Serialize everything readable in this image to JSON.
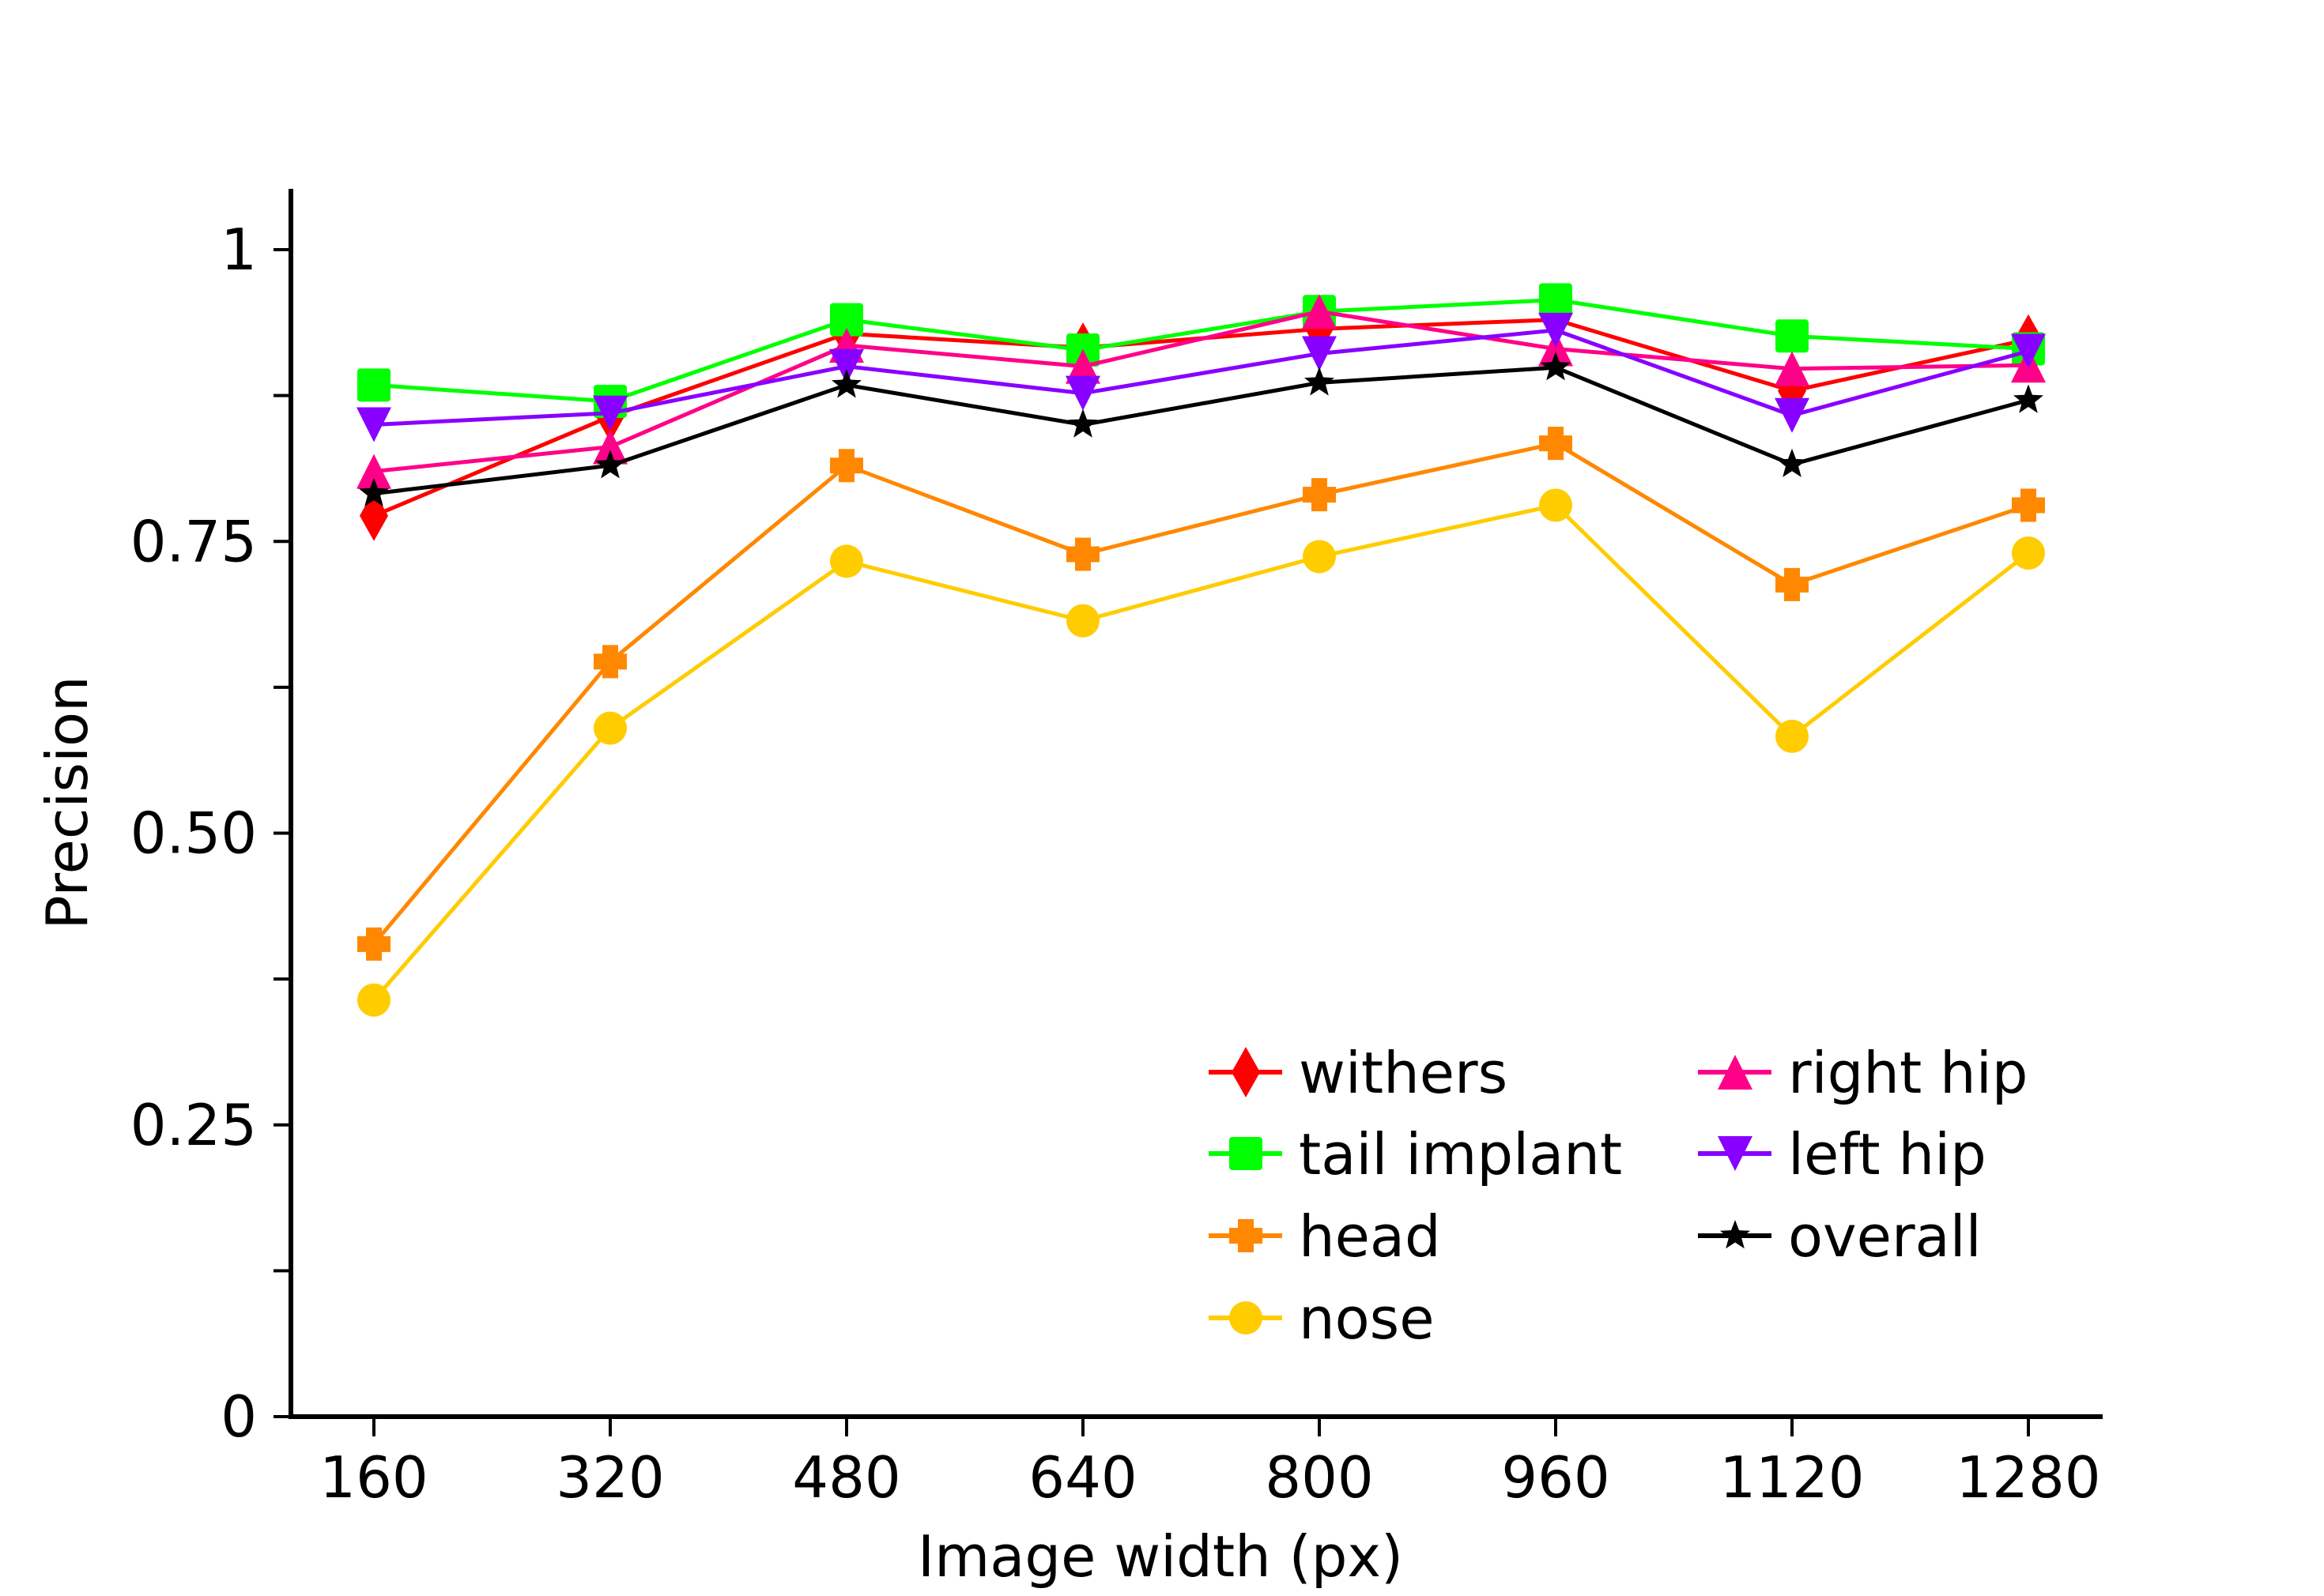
{
  "chart_data": {
    "type": "line",
    "title": "",
    "xlabel": "Image width (px)",
    "ylabel": "Precision",
    "categories": [
      160,
      320,
      480,
      640,
      800,
      960,
      1120,
      1280
    ],
    "x_tick_labels": [
      "160",
      "320",
      "480",
      "640",
      "800",
      "960",
      "1120",
      "1280"
    ],
    "y_tick_labels": [
      {
        "value": 0,
        "label": "0"
      },
      {
        "value": 0.25,
        "label": "0.25"
      },
      {
        "value": 0.5,
        "label": "0.50"
      },
      {
        "value": 0.75,
        "label": "0.75"
      },
      {
        "value": 1,
        "label": "1"
      }
    ],
    "y_minor_ticks": [
      0.125,
      0.375,
      0.625,
      0.875
    ],
    "ylim": [
      0,
      1.05
    ],
    "xlim": [
      125,
      1315
    ],
    "grid": false,
    "legend_position": "lower right, 2 columns",
    "series": [
      {
        "name": "withers",
        "color": "#ff0000",
        "marker": "diamond",
        "values": [
          0.772,
          0.857,
          0.928,
          0.916,
          0.932,
          0.94,
          0.879,
          0.923
        ]
      },
      {
        "name": "tail implant",
        "color": "#00ff00",
        "marker": "square",
        "values": [
          0.884,
          0.87,
          0.94,
          0.914,
          0.947,
          0.957,
          0.926,
          0.915
        ]
      },
      {
        "name": "head",
        "color": "#ff8800",
        "marker": "plus",
        "values": [
          0.405,
          0.647,
          0.815,
          0.739,
          0.79,
          0.834,
          0.713,
          0.781
        ]
      },
      {
        "name": "nose",
        "color": "#ffcc00",
        "marker": "circle",
        "values": [
          0.357,
          0.59,
          0.733,
          0.682,
          0.737,
          0.781,
          0.583,
          0.74
        ]
      },
      {
        "name": "right hip",
        "color": "#ff0088",
        "marker": "triangle-up",
        "values": [
          0.81,
          0.831,
          0.918,
          0.9,
          0.947,
          0.915,
          0.898,
          0.901
        ]
      },
      {
        "name": "left hip",
        "color": "#8800ff",
        "marker": "triangle-down",
        "values": [
          0.85,
          0.86,
          0.9,
          0.877,
          0.911,
          0.931,
          0.858,
          0.913
        ]
      },
      {
        "name": "overall",
        "color": "#000000",
        "marker": "star",
        "values": [
          0.791,
          0.815,
          0.884,
          0.85,
          0.886,
          0.899,
          0.816,
          0.871
        ]
      }
    ]
  }
}
